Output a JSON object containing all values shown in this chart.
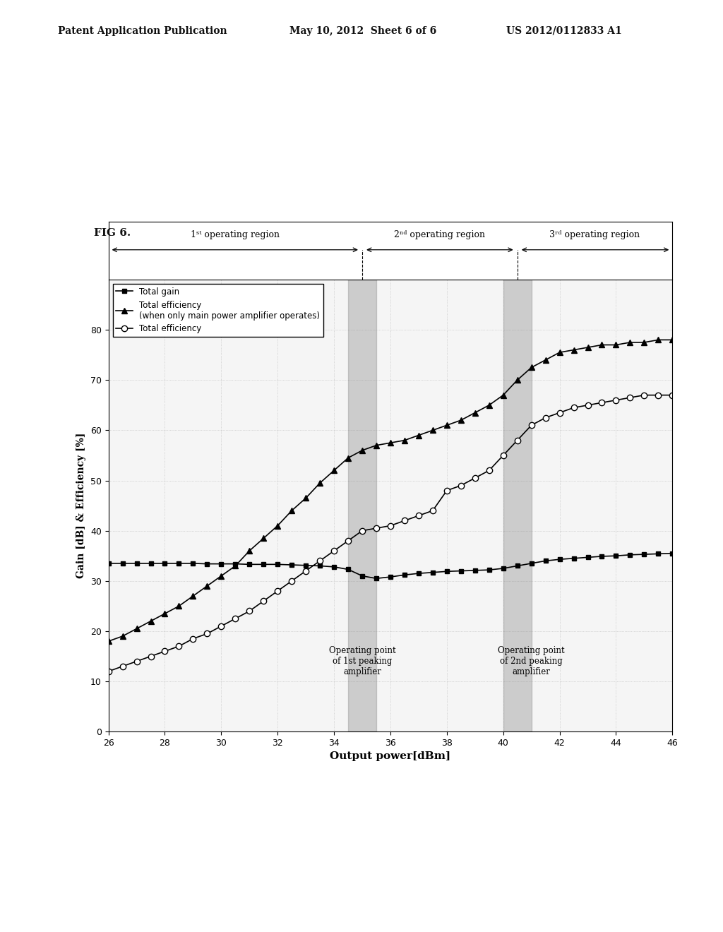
{
  "header_left": "Patent Application Publication",
  "header_center": "May 10, 2012  Sheet 6 of 6",
  "header_right": "US 2012/0112833 A1",
  "fig_label": "FIG 6.",
  "xlabel": "Output power[dBm]",
  "ylabel": "Gain [dB] & Efficiency [%]",
  "xlim": [
    26,
    46
  ],
  "ylim": [
    0,
    90
  ],
  "yticks": [
    0,
    10,
    20,
    30,
    40,
    50,
    60,
    70,
    80
  ],
  "xticks": [
    26,
    28,
    30,
    32,
    34,
    36,
    38,
    40,
    42,
    44,
    46
  ],
  "region1_label": "1st operating region",
  "region2_label": "2nd operating region",
  "region3_label": "3rd operating region",
  "op1_x": 35.0,
  "op2_x": 40.5,
  "op1_label": "Operating point\nof 1st peaking\namplifier",
  "op2_label": "Operating point\nof 2nd peaking\namplifier",
  "legend1": "Total gain",
  "legend2": "Total efficiency",
  "legend2b": "(when only main power amplifier operates)",
  "legend3": "Total efficiency",
  "bg_color": "#ffffff",
  "x_data": [
    26,
    26.5,
    27,
    27.5,
    28,
    28.5,
    29,
    29.5,
    30,
    30.5,
    31,
    31.5,
    32,
    32.5,
    33,
    33.5,
    34,
    34.5,
    35,
    35.5,
    36,
    36.5,
    37,
    37.5,
    38,
    38.5,
    39,
    39.5,
    40,
    40.5,
    41,
    41.5,
    42,
    42.5,
    43,
    43.5,
    44,
    44.5,
    45,
    45.5,
    46
  ],
  "gain_data": [
    33.5,
    33.5,
    33.5,
    33.5,
    33.5,
    33.5,
    33.5,
    33.4,
    33.4,
    33.4,
    33.3,
    33.3,
    33.3,
    33.2,
    33.1,
    33.0,
    32.8,
    32.3,
    31.0,
    30.5,
    30.8,
    31.2,
    31.5,
    31.7,
    31.9,
    32.0,
    32.1,
    32.2,
    32.5,
    33.0,
    33.5,
    34.0,
    34.3,
    34.5,
    34.7,
    34.9,
    35.0,
    35.2,
    35.3,
    35.4,
    35.5
  ],
  "eff_main_data": [
    18,
    19,
    20.5,
    22,
    23.5,
    25,
    27,
    29,
    31,
    33,
    36,
    38.5,
    41,
    44,
    46.5,
    49.5,
    52,
    54.5,
    56,
    57,
    57.5,
    58,
    59,
    60,
    61,
    62,
    63.5,
    65,
    67,
    70,
    72.5,
    74,
    75.5,
    76,
    76.5,
    77,
    77,
    77.5,
    77.5,
    78,
    78
  ],
  "eff_total_data": [
    12,
    13,
    14,
    15,
    16,
    17,
    18.5,
    19.5,
    21,
    22.5,
    24,
    26,
    28,
    30,
    32,
    34,
    36,
    38,
    40,
    40.5,
    41,
    42,
    43,
    44,
    48,
    49,
    50.5,
    52,
    55,
    58,
    61,
    62.5,
    63.5,
    64.5,
    65,
    65.5,
    66,
    66.5,
    67,
    67,
    67
  ]
}
